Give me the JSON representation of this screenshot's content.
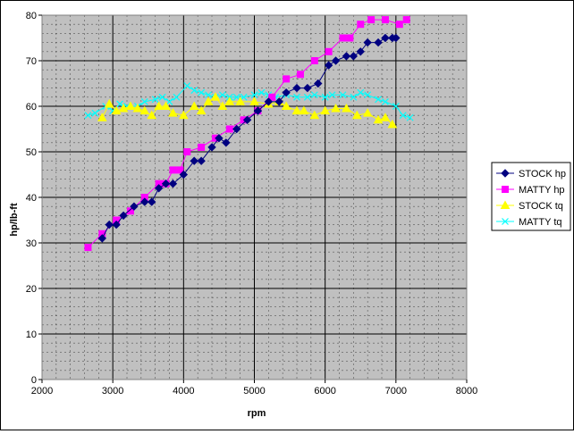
{
  "chart_data": {
    "type": "line",
    "title": "",
    "xlabel": "rpm",
    "ylabel": "hp/lb-ft",
    "xlim": [
      2000,
      8000
    ],
    "ylim": [
      0,
      80
    ],
    "xticks": [
      2000,
      3000,
      4000,
      5000,
      6000,
      7000,
      8000
    ],
    "yticks": [
      0,
      10,
      20,
      30,
      40,
      50,
      60,
      70,
      80
    ],
    "grid": true,
    "minor_grid": true,
    "legend_position": "right",
    "series": [
      {
        "name": "STOCK hp",
        "color": "#000080",
        "marker": "diamond",
        "points": [
          [
            2850,
            31
          ],
          [
            2950,
            34
          ],
          [
            3050,
            34
          ],
          [
            3150,
            36
          ],
          [
            3300,
            38
          ],
          [
            3450,
            39
          ],
          [
            3550,
            39
          ],
          [
            3650,
            42
          ],
          [
            3750,
            43
          ],
          [
            3850,
            43
          ],
          [
            4000,
            45
          ],
          [
            4150,
            48
          ],
          [
            4250,
            48
          ],
          [
            4400,
            51
          ],
          [
            4500,
            53
          ],
          [
            4600,
            52
          ],
          [
            4750,
            55
          ],
          [
            4900,
            57
          ],
          [
            5050,
            59
          ],
          [
            5200,
            61
          ],
          [
            5350,
            61
          ],
          [
            5450,
            63
          ],
          [
            5600,
            64
          ],
          [
            5750,
            64
          ],
          [
            5900,
            65
          ],
          [
            6050,
            69
          ],
          [
            6150,
            70
          ],
          [
            6300,
            71
          ],
          [
            6400,
            71
          ],
          [
            6500,
            72
          ],
          [
            6600,
            74
          ],
          [
            6750,
            74
          ],
          [
            6850,
            75
          ],
          [
            6950,
            75
          ],
          [
            7000,
            75
          ]
        ]
      },
      {
        "name": "MATTY hp",
        "color": "#ff00ff",
        "marker": "square",
        "points": [
          [
            2650,
            29
          ],
          [
            2850,
            32
          ],
          [
            3050,
            35
          ],
          [
            3250,
            37
          ],
          [
            3450,
            40
          ],
          [
            3650,
            43
          ],
          [
            3750,
            43
          ],
          [
            3850,
            46
          ],
          [
            3950,
            46
          ],
          [
            4050,
            50
          ],
          [
            4250,
            51
          ],
          [
            4450,
            53
          ],
          [
            4650,
            55
          ],
          [
            4850,
            57
          ],
          [
            5050,
            59
          ],
          [
            5250,
            62
          ],
          [
            5450,
            66
          ],
          [
            5650,
            67
          ],
          [
            5850,
            70
          ],
          [
            6050,
            72
          ],
          [
            6250,
            75
          ],
          [
            6350,
            75
          ],
          [
            6500,
            78
          ],
          [
            6650,
            79
          ],
          [
            6850,
            79
          ],
          [
            7050,
            78
          ],
          [
            7150,
            79
          ]
        ]
      },
      {
        "name": "STOCK tq",
        "color": "#ffff00",
        "marker": "triangle",
        "points": [
          [
            2850,
            57.5
          ],
          [
            2950,
            60.5
          ],
          [
            3050,
            59
          ],
          [
            3150,
            59.5
          ],
          [
            3250,
            60
          ],
          [
            3350,
            59.5
          ],
          [
            3450,
            59
          ],
          [
            3550,
            58
          ],
          [
            3650,
            60
          ],
          [
            3750,
            60
          ],
          [
            3850,
            58.5
          ],
          [
            4000,
            58
          ],
          [
            4150,
            60
          ],
          [
            4250,
            59
          ],
          [
            4350,
            61
          ],
          [
            4450,
            62
          ],
          [
            4550,
            60
          ],
          [
            4650,
            61
          ],
          [
            4800,
            61
          ],
          [
            5000,
            61
          ],
          [
            5200,
            60.5
          ],
          [
            5350,
            61
          ],
          [
            5450,
            60
          ],
          [
            5600,
            59
          ],
          [
            5700,
            59
          ],
          [
            5850,
            58
          ],
          [
            6000,
            59
          ],
          [
            6150,
            59.5
          ],
          [
            6300,
            59.5
          ],
          [
            6450,
            58
          ],
          [
            6600,
            58.5
          ],
          [
            6750,
            57
          ],
          [
            6850,
            57.5
          ],
          [
            6950,
            56
          ]
        ]
      },
      {
        "name": "MATTY tq",
        "color": "#00ffff",
        "marker": "x",
        "points": [
          [
            2650,
            58
          ],
          [
            2750,
            58.5
          ],
          [
            2900,
            60
          ],
          [
            3000,
            59
          ],
          [
            3100,
            60.5
          ],
          [
            3200,
            60
          ],
          [
            3350,
            60
          ],
          [
            3450,
            61
          ],
          [
            3600,
            61.5
          ],
          [
            3700,
            62
          ],
          [
            3800,
            61
          ],
          [
            3900,
            62
          ],
          [
            4050,
            64.5
          ],
          [
            4150,
            63.5
          ],
          [
            4250,
            63
          ],
          [
            4350,
            62.5
          ],
          [
            4450,
            62
          ],
          [
            4550,
            62.5
          ],
          [
            4650,
            62
          ],
          [
            4750,
            62
          ],
          [
            4850,
            62
          ],
          [
            5000,
            62.5
          ],
          [
            5100,
            63
          ],
          [
            5200,
            62.5
          ],
          [
            5300,
            62
          ],
          [
            5450,
            62.5
          ],
          [
            5600,
            62
          ],
          [
            5750,
            62
          ],
          [
            5850,
            62.5
          ],
          [
            6000,
            62
          ],
          [
            6100,
            62.5
          ],
          [
            6250,
            62.5
          ],
          [
            6400,
            62
          ],
          [
            6500,
            63
          ],
          [
            6600,
            62.5
          ],
          [
            6750,
            61.5
          ],
          [
            6850,
            61
          ],
          [
            7000,
            60
          ],
          [
            7100,
            58
          ],
          [
            7200,
            57.5
          ]
        ]
      }
    ]
  }
}
